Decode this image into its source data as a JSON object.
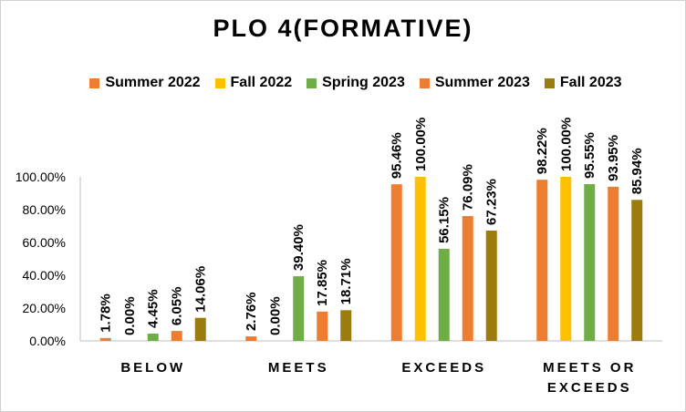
{
  "chart_data": {
    "type": "bar",
    "title": "PLO 4(FORMATIVE)",
    "categories": [
      "BELOW",
      "MEETS",
      "EXCEEDS",
      "MEETS OR EXCEEDS"
    ],
    "category_lines": [
      [
        "BELOW"
      ],
      [
        "MEETS"
      ],
      [
        "EXCEEDS"
      ],
      [
        "MEETS OR",
        "EXCEEDS"
      ]
    ],
    "series": [
      {
        "name": "Summer 2022",
        "color": "#ED7D31",
        "values": [
          1.78,
          2.76,
          95.46,
          98.22
        ],
        "labels": [
          "1.78%",
          "2.76%",
          "95.46%",
          "98.22%"
        ]
      },
      {
        "name": "Fall 2022",
        "color": "#FFC000",
        "values": [
          0.0,
          0.0,
          100.0,
          100.0
        ],
        "labels": [
          "0.00%",
          "0.00%",
          "100.00%",
          "100.00%"
        ]
      },
      {
        "name": "Spring 2023",
        "color": "#70AD47",
        "values": [
          4.45,
          39.4,
          56.15,
          95.55
        ],
        "labels": [
          "4.45%",
          "39.40%",
          "56.15%",
          "95.55%"
        ]
      },
      {
        "name": "Summer 2023",
        "color": "#ED7D31",
        "values": [
          6.05,
          17.85,
          76.09,
          93.95
        ],
        "labels": [
          "6.05%",
          "17.85%",
          "76.09%",
          "93.95%"
        ]
      },
      {
        "name": "Fall 2023",
        "color": "#9C7B0F",
        "values": [
          14.06,
          18.71,
          67.23,
          85.94
        ],
        "labels": [
          "14.06%",
          "18.71%",
          "67.23%",
          "85.94%"
        ]
      }
    ],
    "ylim": [
      0,
      100
    ],
    "yticks": [
      "0.00%",
      "20.00%",
      "40.00%",
      "60.00%",
      "80.00%",
      "100.00%"
    ],
    "grid": false,
    "legend": "top"
  }
}
